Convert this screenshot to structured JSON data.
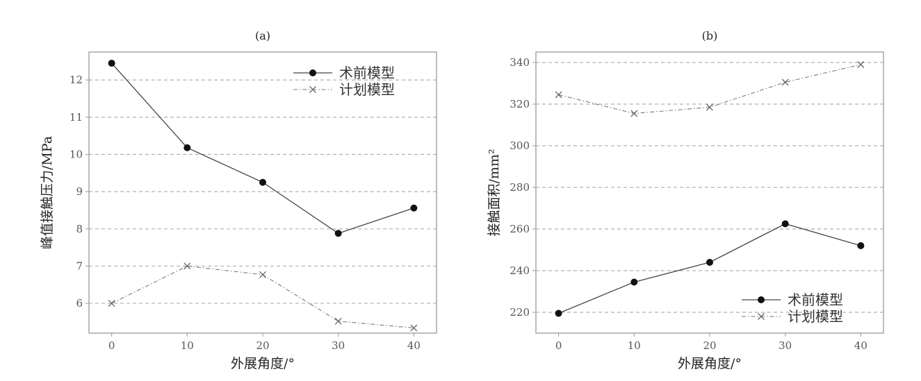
{
  "chart_data": [
    {
      "type": "line",
      "title": "(a)",
      "xlabel": "外展角度/°",
      "ylabel": "峰值接触压力/MPa",
      "x": [
        0,
        10,
        20,
        30,
        40
      ],
      "xlim": [
        -3,
        43
      ],
      "ylim": [
        5.2,
        12.75
      ],
      "xticks": [
        "0",
        "10",
        "20",
        "30",
        "40"
      ],
      "yticks": [
        "6",
        "7",
        "8",
        "9",
        "10",
        "11",
        "12"
      ],
      "ytick_values": [
        6,
        7,
        8,
        9,
        10,
        11,
        12
      ],
      "grid": "horizontal-dashed",
      "legend_position": "top-right",
      "series": [
        {
          "name": "术前模型",
          "marker": "circle",
          "line": "solid",
          "values": [
            12.45,
            10.18,
            9.25,
            7.88,
            8.56
          ]
        },
        {
          "name": "计划模型",
          "marker": "x",
          "line": "dashdot",
          "values": [
            6.0,
            7.0,
            6.77,
            5.52,
            5.34
          ]
        }
      ]
    },
    {
      "type": "line",
      "title": "(b)",
      "xlabel": "外展角度/°",
      "ylabel": "接触面积/mm²",
      "x": [
        0,
        10,
        20,
        30,
        40
      ],
      "xlim": [
        -3,
        43
      ],
      "ylim": [
        210,
        345
      ],
      "xticks": [
        "0",
        "10",
        "20",
        "30",
        "40"
      ],
      "yticks": [
        "220",
        "240",
        "260",
        "280",
        "300",
        "320",
        "340"
      ],
      "ytick_values": [
        220,
        240,
        260,
        280,
        300,
        320,
        340
      ],
      "grid": "horizontal-dashed",
      "legend_position": "bottom-right",
      "series": [
        {
          "name": "术前模型",
          "marker": "circle",
          "line": "solid",
          "values": [
            219.5,
            234.5,
            244.0,
            262.5,
            252.0
          ]
        },
        {
          "name": "计划模型",
          "marker": "x",
          "line": "dashdot",
          "values": [
            324.5,
            315.5,
            318.5,
            330.5,
            339.0
          ]
        }
      ]
    }
  ]
}
